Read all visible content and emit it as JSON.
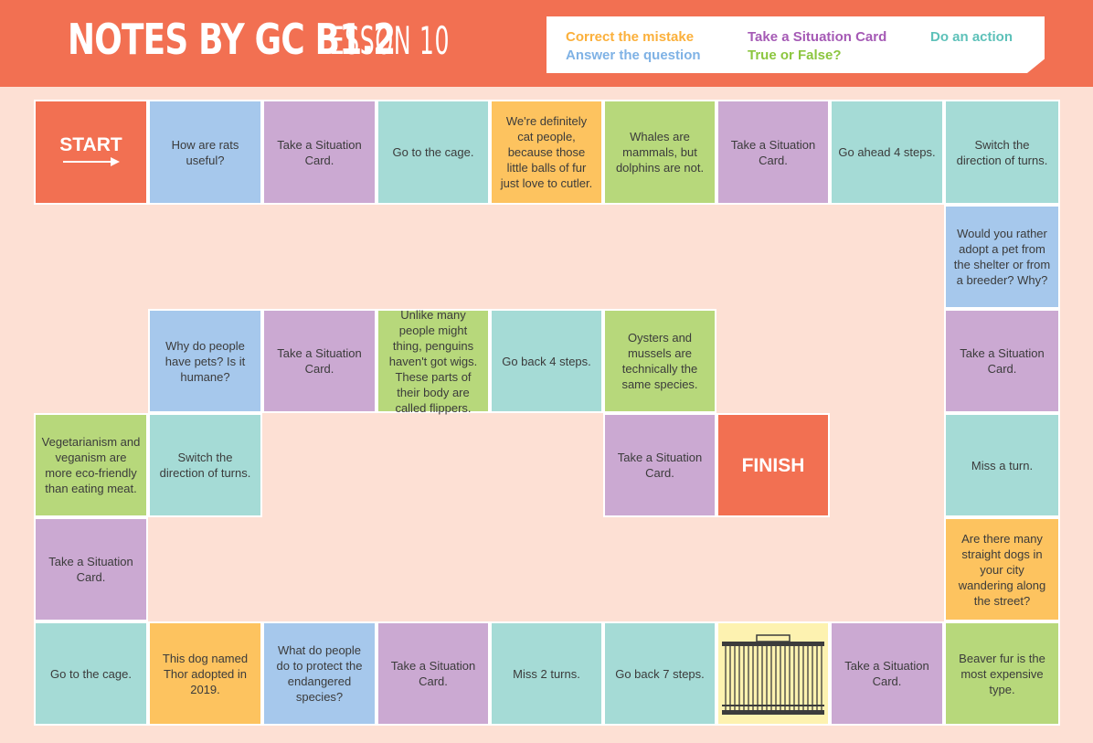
{
  "header": {
    "title_main": "NOTES BY GC B1.2",
    "title_sub": "LESSON 10"
  },
  "legend": [
    {
      "label": "Correct the mistake",
      "color": "#fbb03b"
    },
    {
      "label": "Take a Situation Card",
      "color": "#a55ab5"
    },
    {
      "label": "Do an action",
      "color": "#5dc1b9"
    },
    {
      "label": "Answer the question",
      "color": "#7fb2e5"
    },
    {
      "label": "True or False?",
      "color": "#8cc63f"
    }
  ],
  "cells": {
    "start": "START",
    "r1c2": "How are rats useful?",
    "r1c3": "Take a Situation Card.",
    "r1c4": "Go to the cage.",
    "r1c5": "We're definitely cat people, because those little balls of fur just love to cutler.",
    "r1c6": "Whales are mammals, but dolphins are not.",
    "r1c7": "Take a Situation Card.",
    "r1c8": "Go ahead 4 steps.",
    "r1c9": "Switch the direction of turns.",
    "r2c9": "Would you rather adopt a pet from the shelter or from a breeder? Why?",
    "r3c2": "Why do people have pets? Is it humane?",
    "r3c3": "Take a Situation Card.",
    "r3c4": "Unlike many people might thing, penguins haven't got wigs. These parts of their body are called flippers.",
    "r3c5": "Go back 4 steps.",
    "r3c6": "Oysters and mussels are technically the same species.",
    "r3c9": "Take a Situation Card.",
    "r4c1": "Vegetarianism and veganism are more eco-friendly than eating meat.",
    "r4c2": "Switch the direction of turns.",
    "r4c6": "Take a Situation Card.",
    "finish": "FINISH",
    "r4c9": "Miss a turn.",
    "r5c1": "Take a Situation Card.",
    "r5c9": "Are there many straight dogs in your city wandering along the street?",
    "r6c1": "Go to the cage.",
    "r6c2": "This dog named Thor adopted in 2019.",
    "r6c3": "What do people do to protect the endangered species?",
    "r6c4": "Take a Situation Card.",
    "r6c5": "Miss 2 turns.",
    "r6c6": "Go back 7 steps.",
    "r6c8": "Take a Situation Card.",
    "r6c9": "Beaver fur is the most expensive type."
  },
  "colors": {
    "header_bg": "#f27052",
    "page_bg": "#fde0d4",
    "blue": "#a6c8ec",
    "purple": "#cba9d2",
    "teal": "#a5dbd6",
    "orange": "#fdc35f",
    "green": "#b7d87b",
    "red": "#f27052"
  },
  "icons": {
    "start_arrow": "arrow-right-icon",
    "cage": "cage-icon"
  }
}
